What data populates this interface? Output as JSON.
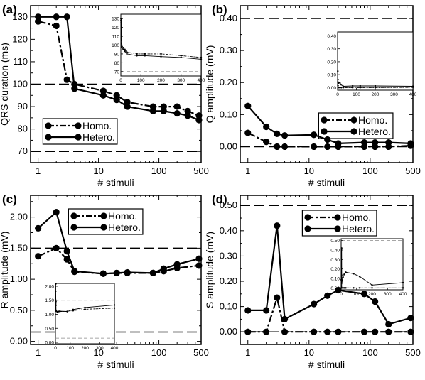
{
  "chart_data": [
    {
      "type": "line",
      "panel_label": "(a)",
      "xlabel": "# stimuli",
      "ylabel": "QRS duration (ms)",
      "xscale": "log",
      "xlim": [
        0.75,
        500
      ],
      "ylim": [
        65,
        135
      ],
      "xticks": [
        1,
        10,
        100,
        500
      ],
      "xtick_labels": [
        "1",
        "10",
        "100",
        "500"
      ],
      "yticks": [
        70,
        80,
        90,
        100,
        110,
        120,
        130
      ],
      "ytick_labels": [
        "70",
        "80",
        "90",
        "100",
        "110",
        "120",
        "130"
      ],
      "hlines": [
        100,
        70
      ],
      "legend": "lower-left",
      "series": [
        {
          "name": "Homo.",
          "style": "dash-dot",
          "x": [
            1,
            2,
            3,
            4,
            12,
            20,
            30,
            80,
            120,
            200,
            300,
            460
          ],
          "y": [
            128,
            126,
            102,
            100,
            97,
            95,
            92,
            90,
            90,
            90,
            88,
            86
          ]
        },
        {
          "name": "Hetero.",
          "style": "solid",
          "x": [
            1,
            2,
            3,
            4,
            12,
            20,
            30,
            80,
            120,
            200,
            300,
            460
          ],
          "y": [
            130,
            130,
            130,
            98,
            95,
            93,
            90,
            88,
            88,
            87,
            86,
            84
          ]
        }
      ],
      "inset": {
        "xlim": [
          0,
          400
        ],
        "ylim": [
          65,
          135
        ],
        "xticks": [
          0,
          100,
          200,
          300,
          400
        ],
        "xtick_labels": [
          "0",
          "100",
          "200",
          "300",
          "400"
        ],
        "yticks": [
          70,
          80,
          90,
          100,
          110,
          120,
          130
        ],
        "ytick_labels": [
          "70",
          "80",
          "90",
          "100",
          "110",
          "120",
          "130"
        ],
        "hlines": [
          100,
          70
        ],
        "series": [
          {
            "style": "dash-dot",
            "x": [
              1,
              2,
              3,
              4,
              12,
              20,
              30,
              80,
              120,
              200,
              300,
              400
            ],
            "y": [
              128,
              126,
              102,
              100,
              97,
              95,
              92,
              90,
              90,
              90,
              88,
              86
            ]
          },
          {
            "style": "solid",
            "x": [
              1,
              2,
              3,
              4,
              12,
              20,
              30,
              80,
              120,
              200,
              300,
              400
            ],
            "y": [
              130,
              130,
              130,
              98,
              95,
              93,
              90,
              88,
              88,
              87,
              86,
              84
            ]
          }
        ]
      }
    },
    {
      "type": "line",
      "panel_label": "(b)",
      "xlabel": "# stimuli",
      "ylabel": "Q amplitude (mV)",
      "xscale": "log",
      "xlim": [
        0.75,
        500
      ],
      "ylim": [
        -0.05,
        0.44
      ],
      "xticks": [
        1,
        10,
        100,
        500
      ],
      "xtick_labels": [
        "1",
        "10",
        "100",
        "500"
      ],
      "yticks": [
        0.0,
        0.1,
        0.2,
        0.3,
        0.4
      ],
      "ytick_labels": [
        "0.00",
        "0.10",
        "0.20",
        "0.30",
        "0.40"
      ],
      "hlines": [
        0.4,
        0.0
      ],
      "legend": "center-right",
      "series": [
        {
          "name": "Homo.",
          "style": "dash-dot",
          "x": [
            1,
            2,
            3,
            4,
            12,
            20,
            30,
            80,
            120,
            200,
            460
          ],
          "y": [
            0.043,
            0.015,
            0.0,
            0.0,
            0.0,
            0.0,
            0.0,
            0.0,
            0.0,
            0.0,
            0.003
          ]
        },
        {
          "name": "Hetero.",
          "style": "solid",
          "x": [
            1,
            2,
            3,
            4,
            12,
            20,
            30,
            80,
            120,
            200,
            460
          ],
          "y": [
            0.127,
            0.062,
            0.04,
            0.035,
            0.037,
            0.022,
            0.01,
            0.013,
            0.013,
            0.013,
            0.01
          ]
        }
      ],
      "inset": {
        "xlim": [
          0,
          400
        ],
        "ylim": [
          -0.02,
          0.43
        ],
        "xticks": [
          0,
          100,
          200,
          300,
          400
        ],
        "xtick_labels": [
          "0",
          "100",
          "200",
          "300",
          "400"
        ],
        "yticks": [
          0.0,
          0.1,
          0.2,
          0.3,
          0.4
        ],
        "ytick_labels": [
          "0.00",
          "0.10",
          "0.20",
          "0.30",
          "0.40"
        ],
        "hlines": [
          0.4,
          0.0
        ],
        "series": [
          {
            "style": "dash-dot",
            "x": [
              1,
              2,
              3,
              4,
              12,
              20,
              30,
              80,
              120,
              200,
              400
            ],
            "y": [
              0.043,
              0.015,
              0.0,
              0.0,
              0.0,
              0.0,
              0.0,
              0.0,
              0.0,
              0.0,
              0.003
            ]
          },
          {
            "style": "solid",
            "x": [
              1,
              2,
              3,
              4,
              12,
              20,
              30,
              80,
              120,
              200,
              400
            ],
            "y": [
              0.127,
              0.062,
              0.04,
              0.035,
              0.037,
              0.022,
              0.01,
              0.013,
              0.013,
              0.013,
              0.01
            ]
          }
        ]
      }
    },
    {
      "type": "line",
      "panel_label": "(c)",
      "xlabel": "# stimuli",
      "ylabel": "R amplitude (mV)",
      "xscale": "log",
      "xlim": [
        0.75,
        500
      ],
      "ylim": [
        -0.05,
        2.35
      ],
      "xticks": [
        1,
        10,
        100,
        500
      ],
      "xtick_labels": [
        "1",
        "10",
        "100",
        "500"
      ],
      "yticks": [
        0.0,
        0.5,
        1.0,
        1.5,
        2.0
      ],
      "ytick_labels": [
        "0.00",
        "0.50",
        "1.00",
        "1.50",
        "2.00"
      ],
      "hlines": [
        1.5,
        0.15
      ],
      "legend": "top-right",
      "series": [
        {
          "name": "Homo.",
          "style": "dash-dot",
          "x": [
            1,
            2,
            3,
            4,
            12,
            20,
            30,
            80,
            120,
            200,
            460
          ],
          "y": [
            1.37,
            1.5,
            1.32,
            1.12,
            1.09,
            1.1,
            1.1,
            1.1,
            1.13,
            1.18,
            1.22
          ]
        },
        {
          "name": "Hetero.",
          "style": "solid",
          "x": [
            1,
            2,
            3,
            4,
            12,
            20,
            30,
            80,
            120,
            200,
            460
          ],
          "y": [
            1.82,
            2.08,
            1.45,
            1.13,
            1.09,
            1.1,
            1.11,
            1.1,
            1.17,
            1.24,
            1.33
          ]
        }
      ],
      "inset": {
        "xlim": [
          0,
          400
        ],
        "ylim": [
          -0.05,
          2.1
        ],
        "xticks": [
          0,
          100,
          200,
          300,
          400
        ],
        "xtick_labels": [
          "0",
          "100",
          "200",
          "300",
          "400"
        ],
        "yticks": [
          0.0,
          0.5,
          1.0,
          1.5,
          2.0
        ],
        "ytick_labels": [
          "0.00",
          "0.50",
          "1.00",
          "1.50",
          "2.00"
        ],
        "hlines": [
          1.5,
          0.15
        ],
        "series": [
          {
            "style": "dash-dot",
            "x": [
              1,
              2,
              3,
              4,
              12,
              20,
              30,
              80,
              120,
              200,
              400
            ],
            "y": [
              1.37,
              1.5,
              1.32,
              1.12,
              1.09,
              1.1,
              1.1,
              1.1,
              1.13,
              1.18,
              1.22
            ]
          },
          {
            "style": "solid",
            "x": [
              1,
              2,
              3,
              4,
              12,
              20,
              30,
              80,
              120,
              200,
              400
            ],
            "y": [
              1.82,
              2.08,
              1.45,
              1.13,
              1.09,
              1.1,
              1.11,
              1.1,
              1.17,
              1.24,
              1.33
            ]
          }
        ]
      }
    },
    {
      "type": "line",
      "panel_label": "(d)",
      "xlabel": "# stimuli",
      "ylabel": "S amplitude (mV)",
      "xscale": "log",
      "xlim": [
        0.75,
        500
      ],
      "ylim": [
        -0.05,
        0.54
      ],
      "xticks": [
        1,
        10,
        100,
        500
      ],
      "xtick_labels": [
        "1",
        "10",
        "100",
        "500"
      ],
      "yticks": [
        0.0,
        0.1,
        0.2,
        0.3,
        0.4,
        0.5
      ],
      "ytick_labels": [
        "0.00",
        "0.10",
        "0.20",
        "0.30",
        "0.40",
        "0.50"
      ],
      "hlines": [
        0.5,
        0.0
      ],
      "legend": "top-right",
      "series": [
        {
          "name": "Homo.",
          "style": "dash-dot",
          "x": [
            1,
            2,
            3,
            4,
            12,
            20,
            30,
            80,
            120,
            200,
            460
          ],
          "y": [
            0.0,
            0.0,
            0.135,
            0.0,
            0.0,
            0.0,
            0.0,
            0.0,
            0.0,
            0.0,
            0.0
          ]
        },
        {
          "name": "Hetero.",
          "style": "solid",
          "x": [
            1,
            2,
            3,
            4,
            12,
            20,
            30,
            80,
            120,
            200,
            460
          ],
          "y": [
            0.085,
            0.085,
            0.42,
            0.05,
            0.11,
            0.143,
            0.165,
            0.15,
            0.12,
            0.03,
            0.055
          ]
        }
      ],
      "inset": {
        "xlim": [
          0,
          400
        ],
        "ylim": [
          -0.02,
          0.52
        ],
        "xticks": [
          0,
          100,
          200,
          300,
          400
        ],
        "xtick_labels": [
          "0",
          "100",
          "200",
          "300",
          "400"
        ],
        "yticks": [
          0.0,
          0.1,
          0.2,
          0.3,
          0.4,
          0.5
        ],
        "ytick_labels": [
          "0.00",
          "0.10",
          "0.20",
          "0.30",
          "0.40",
          "0.50"
        ],
        "hlines": [
          0.5,
          0.0
        ],
        "series": [
          {
            "style": "dash-dot",
            "x": [
              1,
              2,
              3,
              4,
              12,
              20,
              30,
              80,
              120,
              200,
              400
            ],
            "y": [
              0.0,
              0.0,
              0.135,
              0.0,
              0.0,
              0.0,
              0.0,
              0.0,
              0.0,
              0.0,
              0.0
            ]
          },
          {
            "style": "solid",
            "x": [
              1,
              2,
              3,
              4,
              12,
              20,
              30,
              80,
              120,
              200,
              400
            ],
            "y": [
              0.085,
              0.085,
              0.42,
              0.05,
              0.11,
              0.143,
              0.165,
              0.15,
              0.12,
              0.03,
              0.055
            ]
          }
        ]
      }
    }
  ]
}
